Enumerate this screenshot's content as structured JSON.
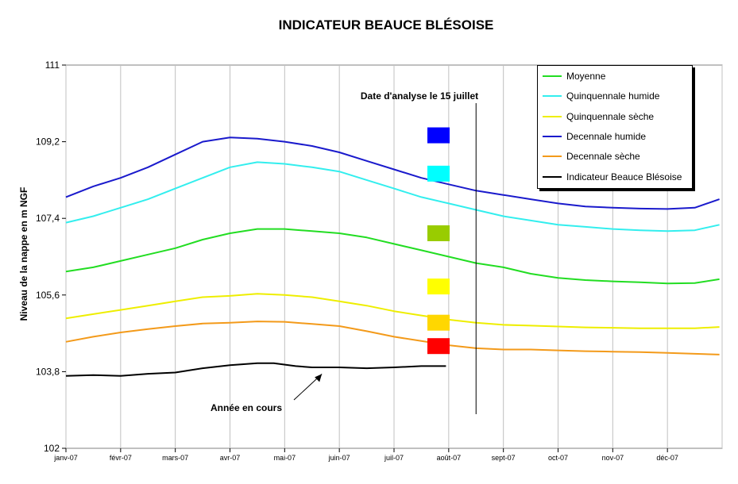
{
  "chart_data": {
    "type": "line",
    "title": "INDICATEUR BEAUCE BLÉSOISE",
    "xlabel": "",
    "ylabel": "Niveau de la nappe en m NGF",
    "ylim": [
      102,
      111
    ],
    "yticks": [
      "102",
      "103,8",
      "105,6",
      "107,4",
      "109,2",
      "111"
    ],
    "x_ticks": [
      "janv-07",
      "févr-07",
      "mars-07",
      "avr-07",
      "mai-07",
      "juin-07",
      "juil-07",
      "août-07",
      "sept-07",
      "oct-07",
      "nov-07",
      "déc-07"
    ],
    "grid": "vertical",
    "legend_position": "top-right",
    "series": [
      {
        "name": "Moyenne",
        "color": "#22dd22",
        "x": [
          0,
          0.5,
          1,
          1.5,
          2,
          2.5,
          3,
          3.5,
          4,
          4.5,
          5,
          5.5,
          6,
          6.5,
          7,
          7.5,
          8,
          8.5,
          9,
          9.5,
          10,
          10.5,
          11,
          11.5,
          11.95
        ],
        "y": [
          106.15,
          106.25,
          106.4,
          106.55,
          106.7,
          106.9,
          107.05,
          107.15,
          107.15,
          107.1,
          107.05,
          106.95,
          106.8,
          106.65,
          106.5,
          106.35,
          106.25,
          106.1,
          106.0,
          105.95,
          105.92,
          105.9,
          105.87,
          105.88,
          105.97
        ]
      },
      {
        "name": "Quinquennale humide",
        "color": "#33eeee",
        "x": [
          0,
          0.5,
          1,
          1.5,
          2,
          2.5,
          3,
          3.5,
          4,
          4.5,
          5,
          5.5,
          6,
          6.5,
          7,
          7.5,
          8,
          8.5,
          9,
          9.5,
          10,
          10.5,
          11,
          11.5,
          11.95
        ],
        "y": [
          107.3,
          107.45,
          107.65,
          107.85,
          108.1,
          108.35,
          108.6,
          108.72,
          108.68,
          108.6,
          108.5,
          108.3,
          108.1,
          107.9,
          107.75,
          107.6,
          107.45,
          107.35,
          107.25,
          107.2,
          107.15,
          107.12,
          107.1,
          107.12,
          107.25
        ]
      },
      {
        "name": "Quinquennale sèche",
        "color": "#eeee00",
        "x": [
          0,
          0.5,
          1,
          1.5,
          2,
          2.5,
          3,
          3.5,
          4,
          4.5,
          5,
          5.5,
          6,
          6.5,
          7,
          7.5,
          8,
          8.5,
          9,
          9.5,
          10,
          10.5,
          11,
          11.5,
          11.95
        ],
        "y": [
          105.05,
          105.15,
          105.25,
          105.35,
          105.45,
          105.55,
          105.58,
          105.63,
          105.6,
          105.55,
          105.45,
          105.35,
          105.22,
          105.12,
          105.02,
          104.95,
          104.9,
          104.88,
          104.86,
          104.84,
          104.83,
          104.82,
          104.82,
          104.82,
          104.85
        ]
      },
      {
        "name": "Decennale humide",
        "color": "#1a1acc",
        "x": [
          0,
          0.5,
          1,
          1.5,
          2,
          2.5,
          3,
          3.5,
          4,
          4.5,
          5,
          5.5,
          6,
          6.5,
          7,
          7.5,
          8,
          8.5,
          9,
          9.5,
          10,
          10.5,
          11,
          11.5,
          11.95
        ],
        "y": [
          107.9,
          108.15,
          108.35,
          108.6,
          108.9,
          109.2,
          109.3,
          109.27,
          109.2,
          109.1,
          108.95,
          108.75,
          108.55,
          108.35,
          108.2,
          108.05,
          107.95,
          107.85,
          107.75,
          107.68,
          107.65,
          107.63,
          107.62,
          107.65,
          107.85
        ]
      },
      {
        "name": "Decennale sèche",
        "color": "#f39a1a",
        "x": [
          0,
          0.5,
          1,
          1.5,
          2,
          2.5,
          3,
          3.5,
          4,
          4.5,
          5,
          5.5,
          6,
          6.5,
          7,
          7.5,
          8,
          8.5,
          9,
          9.5,
          10,
          10.5,
          11,
          11.5,
          11.95
        ],
        "y": [
          104.5,
          104.62,
          104.72,
          104.8,
          104.87,
          104.93,
          104.95,
          104.98,
          104.97,
          104.92,
          104.87,
          104.75,
          104.62,
          104.52,
          104.42,
          104.35,
          104.32,
          104.32,
          104.3,
          104.28,
          104.27,
          104.26,
          104.24,
          104.22,
          104.2
        ]
      },
      {
        "name": "Indicateur Beauce Blésoise",
        "color": "#000000",
        "x": [
          0,
          0.5,
          1,
          1.5,
          2,
          2.5,
          3,
          3.5,
          3.8,
          4.2,
          4.5,
          5,
          5.5,
          6,
          6.5,
          6.95
        ],
        "y": [
          103.7,
          103.72,
          103.7,
          103.75,
          103.78,
          103.88,
          103.95,
          104.0,
          104.0,
          103.93,
          103.9,
          103.9,
          103.88,
          103.9,
          103.93,
          103.93
        ]
      }
    ],
    "analysis_date_label": "Date d'analyse le 15 juillet",
    "analysis_date_x": 7.5,
    "annotation": {
      "text": "Année en cours",
      "x": 5.0,
      "y": 103.8
    },
    "indicator_boxes": [
      {
        "color": "#0000ff",
        "y": 109.35
      },
      {
        "color": "#00ffff",
        "y": 108.45
      },
      {
        "color": "#99cc00",
        "y": 107.05
      },
      {
        "color": "#ffff00",
        "y": 105.8
      },
      {
        "color": "#ffd700",
        "y": 104.95
      },
      {
        "color": "#ff0000",
        "y": 104.4
      }
    ]
  }
}
